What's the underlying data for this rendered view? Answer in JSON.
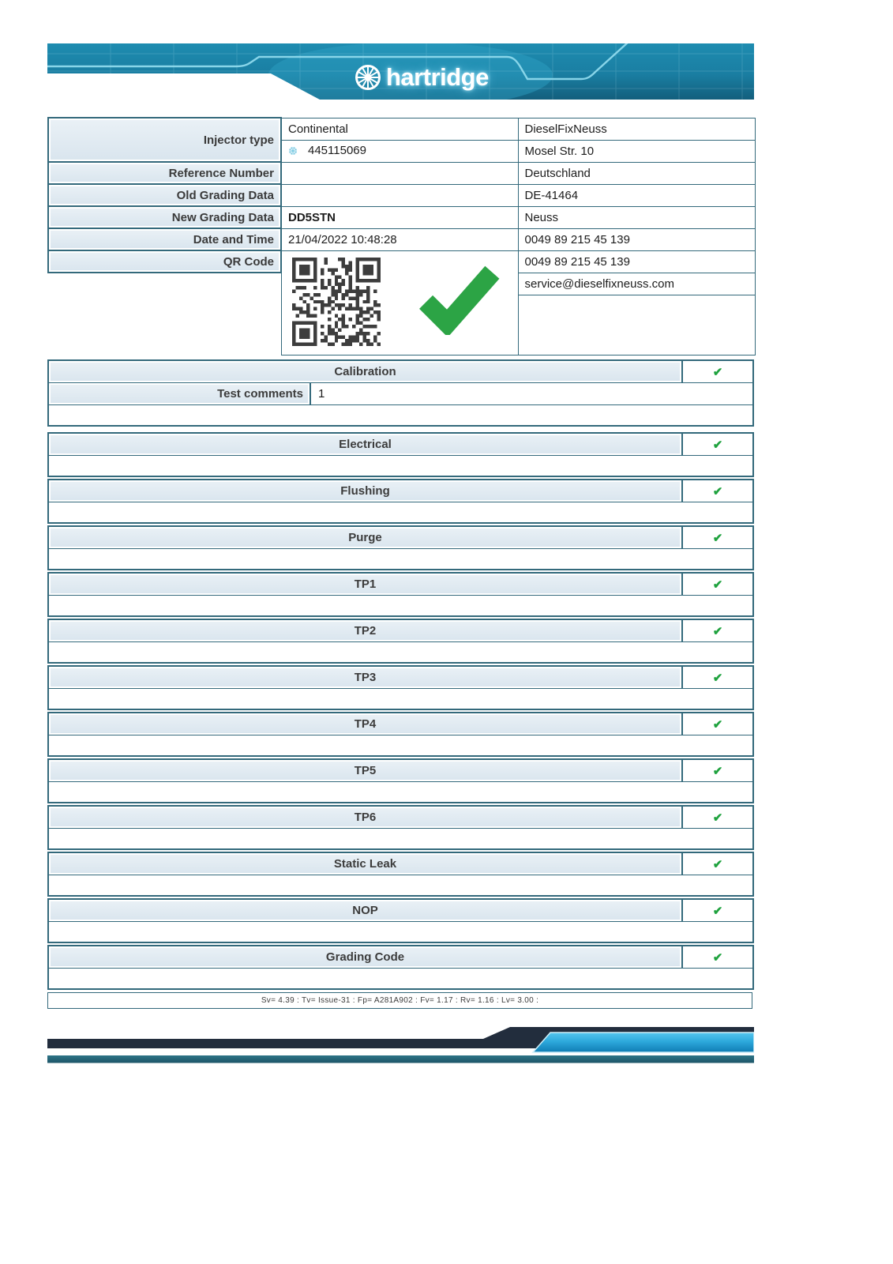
{
  "brand": {
    "logo_text": "hartridge"
  },
  "colors": {
    "banner_teal": "#1b84a8",
    "banner_accent": "#8ed9ec",
    "table_border": "#33697b",
    "label_bg": "#e2ebf2",
    "check_green": "#1fa23e",
    "big_check_green": "#2ca445",
    "footer_navy": "#222d3d",
    "footer_blue": "#2da9dc",
    "footer_strip_teal": "#276c7e"
  },
  "info": {
    "injector_type_label": "Injector type",
    "injector_make": "Continental",
    "injector_number": "445115069",
    "reference_number_label": "Reference Number",
    "reference_number_value": "",
    "old_grading_label": "Old Grading Data",
    "old_grading_value": "",
    "new_grading_label": "New Grading Data",
    "new_grading_value": "DD5STN",
    "datetime_label": "Date and Time",
    "datetime_value": "21/04/2022 10:48:28",
    "qr_label": "QR Code",
    "address": [
      "DieselFixNeuss",
      "Mosel Str. 10",
      "Deutschland",
      "DE-41464",
      "Neuss",
      "0049 89 215 45 139",
      "0049 89 215 45 139",
      "service@dieselfixneuss.com"
    ]
  },
  "tests": {
    "comments_label": "Test comments",
    "comments_value": "1",
    "check_glyph": "✔",
    "sections": [
      {
        "label": "Calibration",
        "status": "pass"
      },
      {
        "label": "Electrical",
        "status": "pass"
      },
      {
        "label": "Flushing",
        "status": "pass"
      },
      {
        "label": "Purge",
        "status": "pass"
      },
      {
        "label": "TP1",
        "status": "pass"
      },
      {
        "label": "TP2",
        "status": "pass"
      },
      {
        "label": "TP3",
        "status": "pass"
      },
      {
        "label": "TP4",
        "status": "pass"
      },
      {
        "label": "TP5",
        "status": "pass"
      },
      {
        "label": "TP6",
        "status": "pass"
      },
      {
        "label": "Static Leak",
        "status": "pass"
      },
      {
        "label": "NOP",
        "status": "pass"
      },
      {
        "label": "Grading Code",
        "status": "pass"
      }
    ]
  },
  "footer": {
    "version_line": "Sv= 4.39 : Tv= Issue-31 : Fp= A281A902 : Fv= 1.17 : Rv= 1.16 : Lv= 3.00 :"
  }
}
